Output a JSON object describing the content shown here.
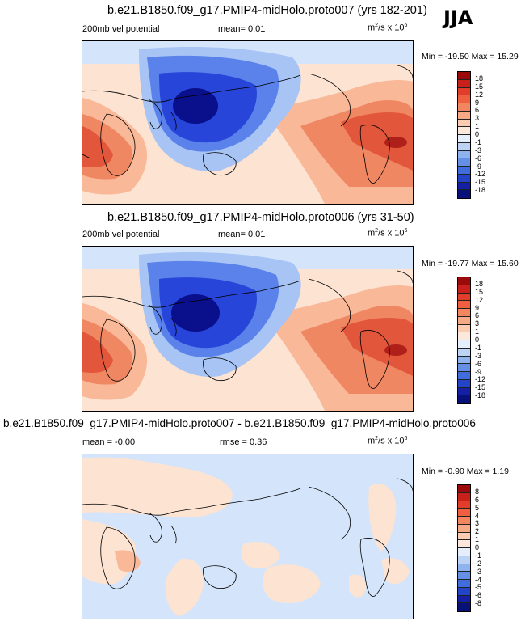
{
  "season": "JJA",
  "unit": {
    "base": "m",
    "exp1": "2",
    "mid": "/s x 10",
    "exp2": "6"
  },
  "colors": {
    "extreme_neg": "#0a0f8c",
    "strong_neg": "#2745d8",
    "mid_neg": "#5a82ea",
    "weak_neg": "#a7c4f4",
    "faint_neg": "#d4e4fa",
    "faint_pos": "#fde3d2",
    "weak_pos": "#f9b898",
    "mid_pos": "#f08763",
    "strong_pos": "#e2573b",
    "extreme_pos": "#9a0a0a",
    "coast": "#000000"
  },
  "panels": [
    {
      "title": "b.e21.B1850.f09_g17.PMIP4-midHolo.proto007 (yrs 182-201)",
      "left_label": "200mb vel potential",
      "center_label": "mean=  0.01",
      "minmax": "Min = -19.50 Max =  15.29",
      "colorbar": {
        "labels": [
          "18",
          "15",
          "12",
          "9",
          "6",
          "3",
          "1",
          "0",
          "-1",
          "-3",
          "-6",
          "-9",
          "-12",
          "-15",
          "-18"
        ],
        "colors": [
          "#9a0a0a",
          "#c8201a",
          "#e03e2a",
          "#ee6040",
          "#f38660",
          "#f7a884",
          "#fbccb2",
          "#fde9dc",
          "#e4eefc",
          "#bcd3f6",
          "#8fb3ef",
          "#6590e6",
          "#3f6ddd",
          "#2444c8",
          "#1320a4",
          "#08107a"
        ]
      }
    },
    {
      "title": "b.e21.B1850.f09_g17.PMIP4-midHolo.proto006 (yrs 31-50)",
      "left_label": "200mb vel potential",
      "center_label": "mean=  0.01",
      "minmax": "Min = -19.77 Max =  15.60",
      "colorbar": {
        "labels": [
          "18",
          "15",
          "12",
          "9",
          "6",
          "3",
          "1",
          "0",
          "-1",
          "-3",
          "-6",
          "-9",
          "-12",
          "-15",
          "-18"
        ],
        "colors": [
          "#9a0a0a",
          "#c8201a",
          "#e03e2a",
          "#ee6040",
          "#f38660",
          "#f7a884",
          "#fbccb2",
          "#fde9dc",
          "#e4eefc",
          "#bcd3f6",
          "#8fb3ef",
          "#6590e6",
          "#3f6ddd",
          "#2444c8",
          "#1320a4",
          "#08107a"
        ]
      }
    },
    {
      "title": "b.e21.B1850.f09_g17.PMIP4-midHolo.proto007 - b.e21.B1850.f09_g17.PMIP4-midHolo.proto006",
      "left_label": "mean =  -0.00",
      "center_label": "rmse =  0.36",
      "minmax": "Min = -0.90 Max =  1.19",
      "colorbar": {
        "labels": [
          "8",
          "6",
          "5",
          "4",
          "3",
          "2",
          "1",
          "0",
          "-1",
          "-2",
          "-3",
          "-4",
          "-5",
          "-6",
          "-8"
        ],
        "colors": [
          "#9a0a0a",
          "#c8201a",
          "#e03e2a",
          "#ee6040",
          "#f38660",
          "#f7a884",
          "#fbccb2",
          "#fde9dc",
          "#e4eefc",
          "#bcd3f6",
          "#8fb3ef",
          "#6590e6",
          "#3f6ddd",
          "#2444c8",
          "#1320a4",
          "#08107a"
        ]
      }
    }
  ]
}
